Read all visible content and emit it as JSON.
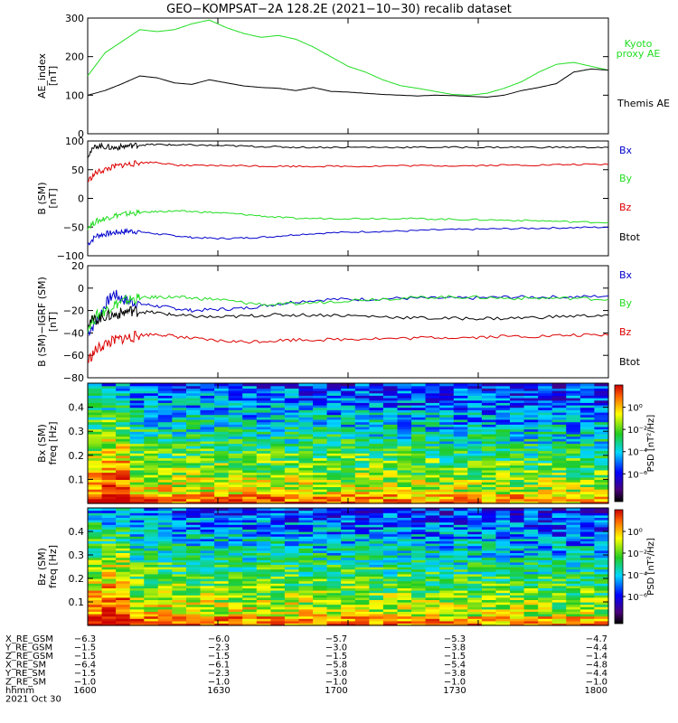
{
  "title": "GEO−KOMPSAT−2A 128.2E (2021−10−30) recalib dataset",
  "colors": {
    "kyoto": "#22dd22",
    "themis": "#000000",
    "bx": "#0000cc",
    "by": "#22dd22",
    "bz": "#dd0000",
    "btot": "#000000"
  },
  "chart_data": [
    {
      "type": "line",
      "id": "ae",
      "ylabel_lines": [
        "AE_index",
        "[nT]"
      ],
      "ylim": [
        0,
        300
      ],
      "yticks": [
        0,
        100,
        200,
        300
      ],
      "xlim": [
        0,
        120
      ],
      "series": [
        {
          "name": "Kyoto proxy AE",
          "label_lines": [
            "Kyoto",
            "proxy AE"
          ],
          "color": "#22dd22",
          "x": [
            0,
            4,
            8,
            12,
            16,
            20,
            24,
            28,
            32,
            36,
            40,
            44,
            48,
            52,
            56,
            60,
            64,
            68,
            72,
            76,
            80,
            84,
            88,
            92,
            96,
            100,
            104,
            108,
            112,
            116,
            120
          ],
          "y": [
            150,
            210,
            240,
            270,
            265,
            270,
            285,
            295,
            275,
            260,
            250,
            255,
            245,
            225,
            200,
            175,
            160,
            140,
            125,
            118,
            110,
            102,
            100,
            105,
            118,
            135,
            160,
            180,
            185,
            175,
            165
          ]
        },
        {
          "name": "Themis AE",
          "label_lines": [
            "Themis AE"
          ],
          "color": "#000000",
          "x": [
            0,
            4,
            8,
            12,
            16,
            20,
            24,
            28,
            32,
            36,
            40,
            44,
            48,
            52,
            56,
            60,
            64,
            68,
            72,
            76,
            80,
            84,
            88,
            92,
            96,
            100,
            104,
            108,
            112,
            116,
            120
          ],
          "y": [
            100,
            112,
            130,
            150,
            145,
            132,
            128,
            140,
            132,
            124,
            120,
            118,
            112,
            120,
            110,
            108,
            105,
            102,
            100,
            98,
            100,
            99,
            97,
            95,
            100,
            112,
            120,
            130,
            160,
            168,
            165
          ]
        }
      ]
    },
    {
      "type": "line",
      "id": "bsm",
      "ylabel_lines": [
        "B (SM)",
        "[nT]"
      ],
      "ylim": [
        -100,
        100
      ],
      "yticks": [
        -100,
        -50,
        0,
        50,
        100
      ],
      "xlim": [
        0,
        120
      ],
      "series": [
        {
          "name": "Bx",
          "color": "#0000cc",
          "x": [
            0,
            2,
            4,
            6,
            8,
            10,
            12,
            16,
            20,
            24,
            30,
            36,
            42,
            48,
            56,
            64,
            72,
            80,
            88,
            96,
            104,
            112,
            120
          ],
          "y": [
            -80,
            -65,
            -62,
            -60,
            -58,
            -57,
            -58,
            -62,
            -65,
            -68,
            -70,
            -69,
            -67,
            -63,
            -60,
            -58,
            -57,
            -55,
            -54,
            -53,
            -52,
            -51,
            -50
          ]
        },
        {
          "name": "By",
          "color": "#22dd22",
          "x": [
            0,
            2,
            4,
            6,
            8,
            10,
            12,
            16,
            20,
            24,
            30,
            36,
            42,
            48,
            56,
            64,
            72,
            80,
            88,
            96,
            104,
            112,
            120
          ],
          "y": [
            -50,
            -40,
            -35,
            -30,
            -28,
            -26,
            -25,
            -23,
            -22,
            -23,
            -25,
            -28,
            -32,
            -35,
            -35,
            -35,
            -35,
            -36,
            -37,
            -38,
            -39,
            -41,
            -42
          ]
        },
        {
          "name": "Bz",
          "color": "#dd0000",
          "x": [
            0,
            2,
            4,
            6,
            8,
            10,
            12,
            16,
            20,
            24,
            30,
            36,
            42,
            48,
            56,
            64,
            72,
            80,
            88,
            96,
            104,
            112,
            120
          ],
          "y": [
            30,
            45,
            50,
            55,
            58,
            60,
            62,
            63,
            58,
            57,
            57,
            57,
            56,
            56,
            56,
            56,
            57,
            57,
            57,
            58,
            58,
            59,
            59
          ]
        },
        {
          "name": "Btot",
          "color": "#000000",
          "x": [
            0,
            2,
            4,
            6,
            8,
            10,
            12,
            16,
            20,
            24,
            30,
            36,
            42,
            48,
            56,
            64,
            72,
            80,
            88,
            96,
            104,
            112,
            120
          ],
          "y": [
            75,
            92,
            90,
            88,
            90,
            92,
            93,
            94,
            93,
            93,
            92,
            91,
            90,
            89,
            89,
            89,
            89,
            89,
            89,
            89,
            89,
            89,
            89
          ]
        }
      ]
    },
    {
      "type": "line",
      "id": "bdiff",
      "ylabel_lines": [
        "B (SM)−IGRF (SM)",
        "[nT]"
      ],
      "ylim": [
        -80,
        20
      ],
      "yticks": [
        -80,
        -60,
        -40,
        -20,
        0,
        20
      ],
      "xlim": [
        0,
        120
      ],
      "series": [
        {
          "name": "Bx",
          "color": "#0000cc",
          "x": [
            0,
            2,
            4,
            6,
            8,
            10,
            12,
            16,
            20,
            24,
            30,
            36,
            42,
            48,
            56,
            64,
            72,
            80,
            88,
            96,
            104,
            112,
            120
          ],
          "y": [
            -40,
            -30,
            -15,
            -5,
            -10,
            -12,
            -14,
            -16,
            -18,
            -20,
            -19,
            -18,
            -15,
            -12,
            -10,
            -10,
            -9,
            -9,
            -9,
            -8,
            -8,
            -8,
            -7
          ]
        },
        {
          "name": "By",
          "color": "#22dd22",
          "x": [
            0,
            2,
            4,
            6,
            8,
            10,
            12,
            16,
            20,
            24,
            30,
            36,
            42,
            48,
            56,
            64,
            72,
            80,
            88,
            96,
            104,
            112,
            120
          ],
          "y": [
            -35,
            -25,
            -20,
            -15,
            -12,
            -10,
            -9,
            -8,
            -8,
            -9,
            -10,
            -13,
            -15,
            -14,
            -12,
            -10,
            -9,
            -8,
            -8,
            -9,
            -9,
            -9,
            -10
          ]
        },
        {
          "name": "Bz",
          "color": "#dd0000",
          "x": [
            0,
            2,
            4,
            6,
            8,
            10,
            12,
            16,
            20,
            24,
            30,
            36,
            42,
            48,
            56,
            64,
            72,
            80,
            88,
            96,
            104,
            112,
            120
          ],
          "y": [
            -65,
            -55,
            -50,
            -47,
            -45,
            -44,
            -42,
            -41,
            -43,
            -45,
            -47,
            -48,
            -47,
            -46,
            -46,
            -45,
            -45,
            -44,
            -44,
            -43,
            -43,
            -42,
            -42
          ]
        },
        {
          "name": "Btot",
          "color": "#000000",
          "x": [
            0,
            2,
            4,
            6,
            8,
            10,
            12,
            16,
            20,
            24,
            30,
            36,
            42,
            48,
            56,
            64,
            72,
            80,
            88,
            96,
            104,
            112,
            120
          ],
          "y": [
            -30,
            -28,
            -25,
            -24,
            -22,
            -20,
            -21,
            -22,
            -24,
            -25,
            -26,
            -25,
            -24,
            -24,
            -24,
            -25,
            -26,
            -27,
            -27,
            -27,
            -26,
            -25,
            -24
          ]
        }
      ],
      "legend_lines": [
        "Bx",
        "By",
        "Bz",
        "Btot"
      ]
    },
    {
      "type": "heatmap",
      "id": "spec_bx",
      "ylabel_lines": [
        "Bx (SM)",
        "freq [Hz]"
      ],
      "ylim": [
        0,
        0.5
      ],
      "yticks": [
        0.1,
        0.2,
        0.3,
        0.4
      ],
      "colorbar_label": "PSD [nT²/Hz]",
      "colorbar_ticks": [
        "10⁰",
        "10⁻²",
        "10⁻⁴",
        "10⁻⁶"
      ],
      "colorbar_exponents": [
        0,
        -2,
        -4,
        -6
      ]
    },
    {
      "type": "heatmap",
      "id": "spec_bz",
      "ylabel_lines": [
        "Bz (SM)",
        "freq [Hz]"
      ],
      "ylim": [
        0,
        0.5
      ],
      "yticks": [
        0.1,
        0.2,
        0.3,
        0.4
      ],
      "colorbar_label": "PSD [nT²/Hz]",
      "colorbar_ticks": [
        "10⁰",
        "10⁻²",
        "10⁻⁴",
        "10⁻⁶"
      ],
      "colorbar_exponents": [
        0,
        -2,
        -4,
        -6
      ]
    }
  ],
  "ephemeris": {
    "row_labels": [
      "X_RE_GSM",
      "Y_RE_GSM",
      "Z_RE_GSM",
      "X_RE_SM",
      "Y_RE_SM",
      "Z_RE_SM",
      "hhmm"
    ],
    "columns": [
      [
        "−6.3",
        "−1.5",
        "−1.5",
        "−6.4",
        "−1.5",
        "−1.0",
        "1600"
      ],
      [
        "−6.0",
        "−2.3",
        "−1.5",
        "−6.1",
        "−2.3",
        "−1.0",
        "1630"
      ],
      [
        "−5.7",
        "−3.0",
        "−1.5",
        "−5.8",
        "−3.0",
        "−1.0",
        "1700"
      ],
      [
        "−5.3",
        "−3.8",
        "−1.5",
        "−5.4",
        "−3.8",
        "−1.0",
        "1730"
      ],
      [
        "−4.7",
        "−4.4",
        "−1.4",
        "−4.8",
        "−4.4",
        "−1.0",
        "1800"
      ]
    ],
    "date": "2021 Oct 30"
  }
}
